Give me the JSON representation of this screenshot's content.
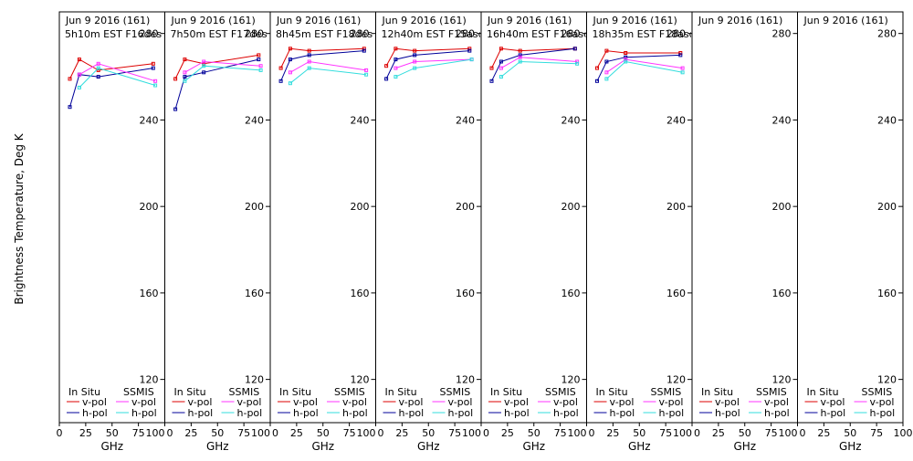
{
  "chart_data": {
    "type": "line",
    "ylabel": "Brightness Temperature, Deg K",
    "xlabel": "GHz",
    "ylim": [
      100,
      290
    ],
    "xlim": [
      0,
      100
    ],
    "y_ticks": [
      120,
      160,
      200,
      240,
      280
    ],
    "x_ticks": [
      0,
      25,
      50,
      75,
      100
    ],
    "x_tick_labels": [
      "0",
      "25",
      "50",
      "75",
      "100"
    ],
    "legend": {
      "left_title": "In Situ",
      "right_title": "SSMIS",
      "v_label": "v-pol",
      "h_label": "h-pol"
    },
    "colors": {
      "insitu_v": "#dd0000",
      "insitu_h": "#000099",
      "ssmis_v": "#ff33ff",
      "ssmis_h": "#33dddd"
    },
    "panels": [
      {
        "date": "Jun  9 2016 (161)",
        "time": "5h10m  EST F16des",
        "series": {
          "insitu_v": {
            "x": [
              10,
              19,
              37,
              89
            ],
            "y": [
              259,
              268,
              263,
              266
            ]
          },
          "insitu_h": {
            "x": [
              10,
              19,
              37,
              89
            ],
            "y": [
              246,
              261,
              260,
              264
            ]
          },
          "ssmis_v": {
            "x": [
              19,
              37,
              91
            ],
            "y": [
              261,
              266,
              258
            ]
          },
          "ssmis_h": {
            "x": [
              19,
              37,
              91
            ],
            "y": [
              255,
              264,
              256
            ]
          }
        }
      },
      {
        "date": "Jun  9 2016 (161)",
        "time": "7h50m  EST F17des",
        "series": {
          "insitu_v": {
            "x": [
              10,
              19,
              37,
              89
            ],
            "y": [
              259,
              268,
              266,
              270
            ]
          },
          "insitu_h": {
            "x": [
              10,
              19,
              37,
              89
            ],
            "y": [
              245,
              260,
              262,
              268
            ]
          },
          "ssmis_v": {
            "x": [
              19,
              37,
              91
            ],
            "y": [
              262,
              267,
              265
            ]
          },
          "ssmis_h": {
            "x": [
              19,
              37,
              91
            ],
            "y": [
              258,
              265,
              263
            ]
          }
        }
      },
      {
        "date": "Jun  9 2016 (161)",
        "time": "8h45m  EST F18des",
        "series": {
          "insitu_v": {
            "x": [
              10,
              19,
              37,
              89
            ],
            "y": [
              264,
              273,
              272,
              273
            ]
          },
          "insitu_h": {
            "x": [
              10,
              19,
              37,
              89
            ],
            "y": [
              258,
              268,
              270,
              272
            ]
          },
          "ssmis_v": {
            "x": [
              19,
              37,
              91
            ],
            "y": [
              262,
              267,
              263
            ]
          },
          "ssmis_h": {
            "x": [
              19,
              37,
              91
            ],
            "y": [
              257,
              264,
              261
            ]
          }
        }
      },
      {
        "date": "Jun  9 2016 (161)",
        "time": "12h40m  EST F15asc",
        "series": {
          "insitu_v": {
            "x": [
              10,
              19,
              37,
              89
            ],
            "y": [
              265,
              273,
              272,
              273
            ]
          },
          "insitu_h": {
            "x": [
              10,
              19,
              37,
              89
            ],
            "y": [
              259,
              268,
              270,
              272
            ]
          },
          "ssmis_v": {
            "x": [
              19,
              37,
              91
            ],
            "y": [
              264,
              267,
              268
            ]
          },
          "ssmis_h": {
            "x": [
              19,
              37,
              91
            ],
            "y": [
              260,
              264,
              268
            ]
          }
        }
      },
      {
        "date": "Jun  9 2016 (161)",
        "time": "16h40m  EST F16asc",
        "series": {
          "insitu_v": {
            "x": [
              10,
              19,
              37,
              89
            ],
            "y": [
              264,
              273,
              272,
              273
            ]
          },
          "insitu_h": {
            "x": [
              10,
              19,
              37,
              89
            ],
            "y": [
              258,
              267,
              270,
              273
            ]
          },
          "ssmis_v": {
            "x": [
              19,
              37,
              91
            ],
            "y": [
              264,
              269,
              267
            ]
          },
          "ssmis_h": {
            "x": [
              19,
              37,
              91
            ],
            "y": [
              260,
              267,
              266
            ]
          }
        }
      },
      {
        "date": "Jun  9 2016 (161)",
        "time": "18h35m  EST F18asc",
        "series": {
          "insitu_v": {
            "x": [
              10,
              19,
              37,
              89
            ],
            "y": [
              264,
              272,
              271,
              271
            ]
          },
          "insitu_h": {
            "x": [
              10,
              19,
              37,
              89
            ],
            "y": [
              258,
              267,
              269,
              270
            ]
          },
          "ssmis_v": {
            "x": [
              19,
              37,
              91
            ],
            "y": [
              262,
              268,
              264
            ]
          },
          "ssmis_h": {
            "x": [
              19,
              37,
              91
            ],
            "y": [
              259,
              267,
              262
            ]
          }
        }
      },
      {
        "date": "Jun  9 2016 (161)",
        "time": "",
        "series": {}
      },
      {
        "date": "Jun  9 2016 (161)",
        "time": "",
        "series": {}
      }
    ]
  }
}
